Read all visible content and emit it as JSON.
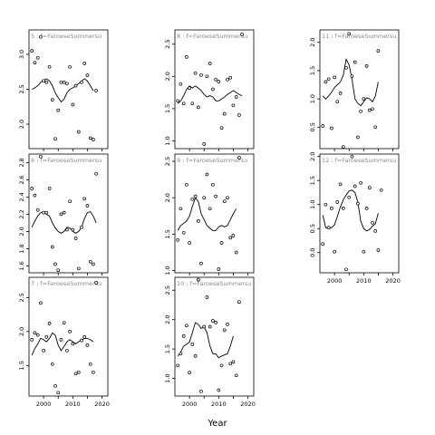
{
  "figure": {
    "xlabel": "Year"
  },
  "chart_data": [
    {
      "type": "scatter",
      "title": "5 : f=FaroeseSummersu",
      "xlim": [
        1995,
        2022
      ],
      "ylim": [
        1.65,
        3.35
      ],
      "yticks": [
        "2.0",
        "2.5",
        "3.0"
      ],
      "x": [
        1996,
        1997,
        1998,
        1999,
        2000,
        2001,
        2002,
        2003,
        2004,
        2005,
        2006,
        2007,
        2008,
        2009,
        2010,
        2011,
        2012,
        2013,
        2014,
        2015,
        2016,
        2017,
        2018,
        2019
      ],
      "points": [
        3.05,
        2.88,
        2.95,
        3.25,
        2.62,
        2.6,
        2.82,
        2.35,
        1.79,
        2.2,
        2.6,
        2.6,
        2.58,
        2.82,
        2.28,
        2.55,
        1.89,
        2.6,
        2.87,
        2.7,
        1.8,
        1.78,
        2.48,
        null
      ],
      "series": [
        {
          "name": "trend",
          "values": [
            2.5,
            2.52,
            2.55,
            2.6,
            2.63,
            2.65,
            2.62,
            2.55,
            2.45,
            2.38,
            2.32,
            2.36,
            2.45,
            2.5,
            2.52,
            2.55,
            2.58,
            2.62,
            2.65,
            2.62,
            2.55,
            2.48,
            null,
            null
          ]
        }
      ]
    },
    {
      "type": "scatter",
      "title": "6 : f=FaroeseSummersu",
      "xlim": [
        1995,
        2022
      ],
      "ylim": [
        1.52,
        2.9
      ],
      "yticks": [
        "1.6",
        "1.8",
        "2.0",
        "2.2",
        "2.4",
        "2.6",
        "2.8"
      ],
      "x": [
        1996,
        1997,
        1998,
        1999,
        2000,
        2001,
        2002,
        2003,
        2004,
        2005,
        2006,
        2007,
        2008,
        2009,
        2010,
        2011,
        2012,
        2013,
        2014,
        2015,
        2016,
        2017,
        2018,
        2019
      ],
      "points": [
        2.5,
        2.42,
        2.25,
        2.87,
        2.22,
        2.22,
        2.5,
        1.82,
        1.62,
        1.55,
        2.2,
        2.22,
        2.02,
        2.35,
        2.02,
        1.92,
        1.57,
        2.05,
        2.38,
        2.3,
        1.65,
        1.62,
        2.67,
        null
      ],
      "series": [
        {
          "name": "trend",
          "values": [
            2.05,
            2.12,
            2.18,
            2.22,
            2.23,
            2.2,
            2.18,
            2.1,
            2.04,
            2.0,
            1.98,
            2.0,
            2.05,
            2.04,
            2.0,
            1.98,
            2.0,
            2.05,
            2.15,
            2.22,
            2.23,
            2.18,
            2.1,
            null
          ]
        }
      ]
    },
    {
      "type": "scatter",
      "title": "7 : f=FaroeseSummersu",
      "xlim": [
        1995,
        2022
      ],
      "ylim": [
        1.05,
        2.8
      ],
      "yticks": [
        "1.5",
        "2.0",
        "2.5"
      ],
      "x": [
        1996,
        1997,
        1998,
        1999,
        2000,
        2001,
        2002,
        2003,
        2004,
        2005,
        2006,
        2007,
        2008,
        2009,
        2010,
        2011,
        2012,
        2013,
        2014,
        2015,
        2016,
        2017,
        2018,
        2019
      ],
      "points": [
        1.88,
        1.98,
        1.95,
        2.42,
        1.72,
        1.92,
        2.12,
        1.52,
        1.2,
        1.1,
        1.88,
        2.13,
        1.72,
        2.0,
        1.82,
        1.38,
        1.4,
        1.87,
        1.92,
        1.8,
        1.52,
        1.4,
        2.72,
        null
      ],
      "series": [
        {
          "name": "trend",
          "values": [
            1.65,
            1.75,
            1.82,
            1.9,
            1.88,
            1.85,
            1.9,
            1.98,
            1.95,
            1.8,
            1.72,
            1.78,
            1.85,
            1.88,
            1.85,
            1.82,
            1.85,
            1.88,
            1.9,
            1.9,
            1.88,
            1.85,
            null,
            null
          ]
        }
      ]
    },
    {
      "type": "scatter",
      "title": "8 : f=FaroeseSummersu",
      "xlim": [
        1995,
        2022
      ],
      "ylim": [
        0.88,
        2.72
      ],
      "yticks": [
        "1.0",
        "1.5",
        "2.0",
        "2.5"
      ],
      "x": [
        1996,
        1997,
        1998,
        1999,
        2000,
        2001,
        2002,
        2003,
        2004,
        2005,
        2006,
        2007,
        2008,
        2009,
        2010,
        2011,
        2012,
        2013,
        2014,
        2015,
        2016,
        2017,
        2018,
        2019
      ],
      "points": [
        1.62,
        1.88,
        1.58,
        2.3,
        1.82,
        1.58,
        2.05,
        1.52,
        2.02,
        0.95,
        2.0,
        2.2,
        1.8,
        1.95,
        1.92,
        1.2,
        1.42,
        1.95,
        1.98,
        1.55,
        1.68,
        1.4,
        2.65,
        null
      ],
      "series": [
        {
          "name": "trend",
          "values": [
            1.58,
            1.62,
            1.7,
            1.8,
            1.85,
            1.82,
            1.85,
            1.82,
            1.78,
            1.72,
            1.68,
            1.7,
            1.68,
            1.62,
            1.62,
            1.65,
            1.68,
            1.72,
            1.75,
            1.78,
            1.75,
            1.72,
            1.7,
            null
          ]
        }
      ]
    },
    {
      "type": "scatter",
      "title": "9 : f=FaroeseSummersu",
      "xlim": [
        1995,
        2022
      ],
      "ylim": [
        0.97,
        2.6
      ],
      "yticks": [
        "1.0",
        "1.5",
        "2.0",
        "2.5"
      ],
      "x": [
        1996,
        1997,
        1998,
        1999,
        2000,
        2001,
        2002,
        2003,
        2004,
        2005,
        2006,
        2007,
        2008,
        2009,
        2010,
        2011,
        2012,
        2013,
        2014,
        2015,
        2016,
        2017,
        2018,
        2019
      ],
      "points": [
        1.42,
        1.85,
        1.52,
        2.18,
        1.38,
        1.98,
        2.02,
        1.68,
        1.1,
        2.0,
        2.32,
        1.85,
        2.18,
        2.02,
        1.02,
        1.38,
        1.95,
        2.0,
        1.45,
        1.48,
        1.25,
        2.55,
        null,
        null
      ],
      "series": [
        {
          "name": "trend",
          "values": [
            1.55,
            1.62,
            1.65,
            1.68,
            1.75,
            1.88,
            2.0,
            1.95,
            1.78,
            1.7,
            1.62,
            1.58,
            1.55,
            1.55,
            1.6,
            1.62,
            1.6,
            1.62,
            1.7,
            1.78,
            1.85,
            null,
            null,
            null
          ]
        }
      ]
    },
    {
      "type": "scatter",
      "title": "10 : f=FaroeseSummersu",
      "xlim": [
        1995,
        2022
      ],
      "ylim": [
        0.7,
        2.72
      ],
      "yticks": [
        "1.0",
        "1.5",
        "2.0",
        "2.5"
      ],
      "x": [
        1996,
        1997,
        1998,
        1999,
        2000,
        2001,
        2002,
        2003,
        2004,
        2005,
        2006,
        2007,
        2008,
        2009,
        2010,
        2011,
        2012,
        2013,
        2014,
        2015,
        2016,
        2017,
        2018,
        2019
      ],
      "points": [
        1.22,
        1.42,
        1.72,
        1.9,
        1.1,
        1.58,
        1.38,
        2.68,
        0.78,
        1.88,
        2.38,
        1.88,
        1.98,
        1.95,
        0.8,
        1.22,
        1.82,
        1.92,
        1.25,
        1.28,
        1.05,
        2.3,
        null,
        null
      ],
      "series": [
        {
          "name": "trend",
          "values": [
            1.38,
            1.45,
            1.55,
            1.58,
            1.62,
            1.78,
            1.95,
            1.92,
            1.85,
            1.88,
            1.78,
            1.55,
            1.42,
            1.42,
            1.35,
            1.38,
            1.4,
            1.42,
            1.55,
            1.72,
            null,
            null,
            null,
            null
          ]
        }
      ]
    },
    {
      "type": "scatter",
      "title": "11 : f=FaroeseSummersu",
      "xlim": [
        1995,
        2022
      ],
      "ylim": [
        0.12,
        2.22
      ],
      "yticks": [
        "0.5",
        "1.0",
        "1.5",
        "2.0"
      ],
      "x": [
        1996,
        1997,
        1998,
        1999,
        2000,
        2001,
        2002,
        2003,
        2004,
        2005,
        2006,
        2007,
        2008,
        2009,
        2010,
        2011,
        2012,
        2013,
        2014,
        2015,
        2016,
        2017,
        2018,
        2019
      ],
      "points": [
        0.52,
        1.3,
        1.35,
        0.48,
        1.38,
        0.95,
        1.1,
        0.15,
        1.55,
        2.15,
        1.4,
        1.65,
        0.32,
        0.78,
        1.0,
        1.58,
        0.8,
        0.82,
        0.5,
        1.85,
        null,
        null,
        null,
        null
      ],
      "series": [
        {
          "name": "trend",
          "values": [
            1.05,
            1.0,
            1.05,
            1.12,
            1.2,
            1.25,
            1.3,
            1.42,
            1.7,
            1.6,
            1.35,
            1.0,
            0.92,
            0.88,
            0.95,
            1.02,
            1.0,
            0.95,
            1.05,
            1.3,
            null,
            null,
            null,
            null
          ]
        }
      ]
    },
    {
      "type": "scatter",
      "title": "12 : f=FaroeseSummersu",
      "xlim": [
        1995,
        2022
      ],
      "ylim": [
        -0.42,
        2.05
      ],
      "yticks": [
        "0.0",
        "0.5",
        "1.0",
        "1.5",
        "2.0"
      ],
      "x": [
        1996,
        1997,
        1998,
        1999,
        2000,
        2001,
        2002,
        2003,
        2004,
        2005,
        2006,
        2007,
        2008,
        2009,
        2010,
        2011,
        2012,
        2013,
        2014,
        2015,
        2016,
        2017,
        2018,
        2019
      ],
      "points": [
        0.18,
        1.0,
        0.52,
        0.92,
        0.02,
        1.05,
        1.42,
        0.92,
        -0.35,
        1.15,
        2.0,
        1.38,
        1.02,
        1.45,
        0.02,
        0.92,
        1.35,
        0.62,
        0.45,
        0.05,
        1.3,
        null,
        null,
        null
      ],
      "series": [
        {
          "name": "trend",
          "values": [
            0.78,
            0.52,
            0.5,
            0.52,
            0.58,
            0.75,
            0.95,
            1.1,
            1.2,
            1.28,
            1.3,
            1.25,
            1.05,
            0.65,
            0.5,
            0.45,
            0.48,
            0.55,
            0.6,
            0.82,
            null,
            null,
            null,
            null
          ]
        }
      ]
    }
  ]
}
